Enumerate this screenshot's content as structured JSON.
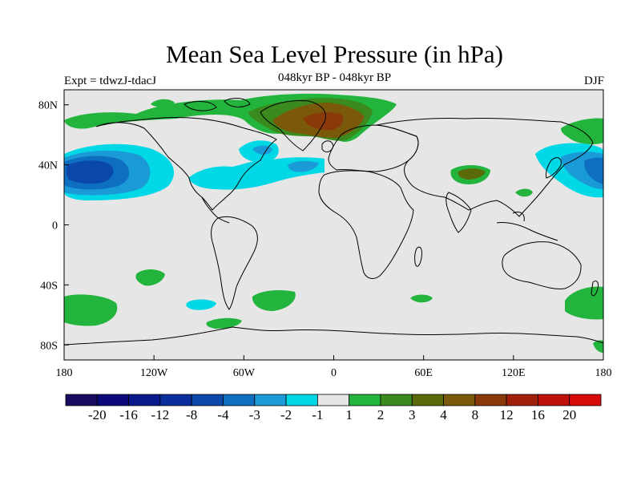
{
  "title": "Mean Sea Level Pressure (in hPa)",
  "subtitle_left": "Expt = tdwzJ-tdacJ",
  "subtitle_center": "048kyr BP - 048kyr BP",
  "subtitle_right": "DJF",
  "map": {
    "projection": "cylindrical-equidistant",
    "lon_range": [
      -180,
      180
    ],
    "lat_range": [
      -90,
      90
    ],
    "background_color": "#e6e6e6",
    "x_ticks": [
      {
        "lon": -180,
        "label": "180"
      },
      {
        "lon": -120,
        "label": "120W"
      },
      {
        "lon": -60,
        "label": "60W"
      },
      {
        "lon": 0,
        "label": "0"
      },
      {
        "lon": 60,
        "label": "60E"
      },
      {
        "lon": 120,
        "label": "120E"
      },
      {
        "lon": 180,
        "label": "180"
      }
    ],
    "y_ticks": [
      {
        "lat": 80,
        "label": "80N"
      },
      {
        "lat": 40,
        "label": "40N"
      },
      {
        "lat": 0,
        "label": "0"
      },
      {
        "lat": -40,
        "label": "40S"
      },
      {
        "lat": -80,
        "label": "80S"
      }
    ]
  },
  "anomalies": [
    {
      "region": "north-pacific-low",
      "lon": -160,
      "lat": 38,
      "level": -8
    },
    {
      "region": "greenland-high",
      "lon": -10,
      "lat": 72,
      "level": 8
    },
    {
      "region": "north-atlantic-low",
      "lon": -40,
      "lat": 38,
      "level": -2
    },
    {
      "region": "tibet-high",
      "lon": 90,
      "lat": 35,
      "level": 3
    },
    {
      "region": "northwest-pacific-low",
      "lon": 170,
      "lat": 38,
      "level": -4
    },
    {
      "region": "southern-ocean-high",
      "lon": -165,
      "lat": -55,
      "level": 2
    }
  ],
  "colorbar": {
    "colors": [
      "#1a0a60",
      "#0c0a7a",
      "#0a1a8c",
      "#0a2e9c",
      "#0a48ac",
      "#0e6ec0",
      "#1a9ad6",
      "#00d8e6",
      "#e6e6e6",
      "#22b43c",
      "#3a8a1e",
      "#5a6a0a",
      "#7a5a0a",
      "#8a3a0a",
      "#a0200a",
      "#c0100a",
      "#d80a0a"
    ],
    "labels": [
      "-20",
      "-16",
      "-12",
      "-8",
      "-4",
      "-3",
      "-2",
      "-1",
      "1",
      "2",
      "3",
      "4",
      "8",
      "12",
      "16",
      "20"
    ]
  }
}
